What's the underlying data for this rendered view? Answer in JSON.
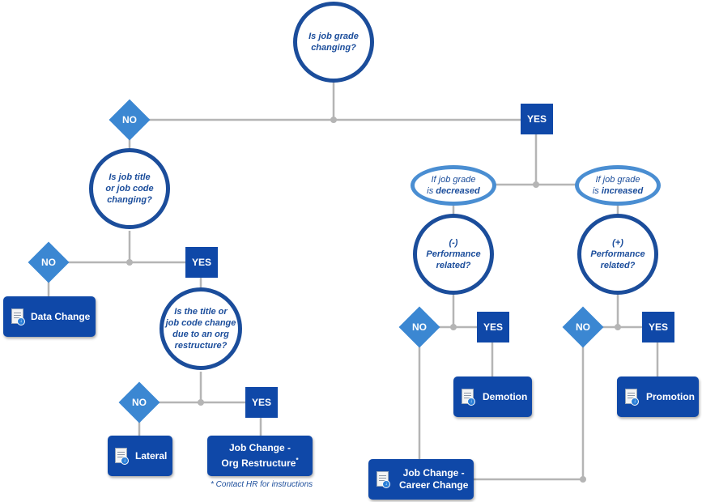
{
  "questions": {
    "grade_changing": [
      "Is job grade",
      "changing?"
    ],
    "title_code_changing": [
      "Is job title",
      "or job code",
      "changing?"
    ],
    "org_restructure": [
      "Is the title or",
      "job code change",
      "due to an org",
      "restructure?"
    ],
    "neg_performance": [
      "(-)",
      "Performance",
      "related?"
    ],
    "pos_performance": [
      "(+)",
      "Performance",
      "related?"
    ]
  },
  "conditions": {
    "decreased_prefix": "If job grade",
    "decreased_is": "is ",
    "decreased_word": "decreased",
    "increased_prefix": "If job grade",
    "increased_is": "is ",
    "increased_word": "increased"
  },
  "labels": {
    "yes": "YES",
    "no": "NO"
  },
  "outcomes": {
    "data_change": "Data Change",
    "lateral": "Lateral",
    "job_change_org_line1": "Job Change -",
    "job_change_org_line2": "Org Restructure",
    "job_change_org_mark": "*",
    "demotion": "Demotion",
    "promotion": "Promotion",
    "career_change_line1": "Job Change -",
    "career_change_line2": "Career Change"
  },
  "footnote": "* Contact HR for instructions",
  "icons": {
    "outcome_icon": "document-download-icon"
  },
  "colors": {
    "dark_blue": "#0f48a8",
    "circle_border": "#1b4d9b",
    "light_blue": "#3b87d2",
    "oval_border": "#4a8ed2",
    "connector": "#b5b5b5"
  }
}
